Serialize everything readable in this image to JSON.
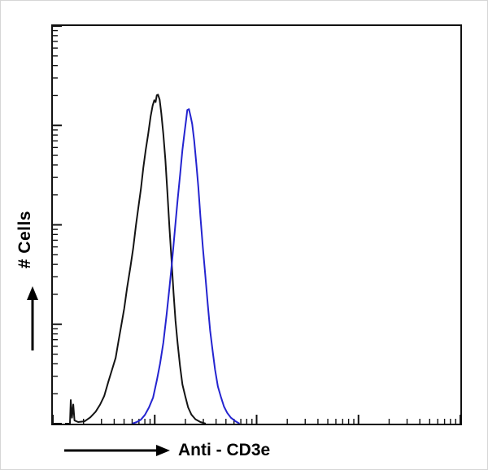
{
  "figure": {
    "kind": "flow-cytometry-histogram",
    "background_color": "#ffffff",
    "axis_color": "#111111"
  },
  "chart_data": {
    "type": "area",
    "title": "",
    "xlabel": "Anti - CD3e",
    "ylabel": "# Cells",
    "grid": false,
    "legend": "none",
    "x_axis": {
      "scale": "log",
      "decades": 4,
      "tick_labels": []
    },
    "y_axis": {
      "scale": "log",
      "decades": 4,
      "tick_labels": []
    },
    "series": [
      {
        "name": "black curve",
        "color": "#141414",
        "peak_x_fraction": 0.256,
        "peak_height_fraction": 0.83,
        "points": [
          [
            0.03,
            0
          ],
          [
            0.042,
            0
          ],
          [
            0.044,
            0.062
          ],
          [
            0.047,
            0.015
          ],
          [
            0.05,
            0.048
          ],
          [
            0.053,
            0.008
          ],
          [
            0.062,
            0.004
          ],
          [
            0.078,
            0.006
          ],
          [
            0.092,
            0.016
          ],
          [
            0.105,
            0.03
          ],
          [
            0.116,
            0.048
          ],
          [
            0.126,
            0.072
          ],
          [
            0.136,
            0.102
          ],
          [
            0.146,
            0.138
          ],
          [
            0.154,
            0.168
          ],
          [
            0.161,
            0.205
          ],
          [
            0.168,
            0.248
          ],
          [
            0.175,
            0.292
          ],
          [
            0.182,
            0.338
          ],
          [
            0.19,
            0.392
          ],
          [
            0.197,
            0.443
          ],
          [
            0.204,
            0.497
          ],
          [
            0.21,
            0.545
          ],
          [
            0.216,
            0.592
          ],
          [
            0.222,
            0.641
          ],
          [
            0.228,
            0.689
          ],
          [
            0.234,
            0.731
          ],
          [
            0.24,
            0.77
          ],
          [
            0.245,
            0.8
          ],
          [
            0.249,
            0.816
          ],
          [
            0.252,
            0.806
          ],
          [
            0.255,
            0.826
          ],
          [
            0.258,
            0.83
          ],
          [
            0.262,
            0.812
          ],
          [
            0.266,
            0.781
          ],
          [
            0.271,
            0.731
          ],
          [
            0.276,
            0.662
          ],
          [
            0.281,
            0.582
          ],
          [
            0.286,
            0.497
          ],
          [
            0.291,
            0.412
          ],
          [
            0.296,
            0.331
          ],
          [
            0.301,
            0.261
          ],
          [
            0.306,
            0.201
          ],
          [
            0.312,
            0.146
          ],
          [
            0.318,
            0.101
          ],
          [
            0.325,
            0.066
          ],
          [
            0.332,
            0.041
          ],
          [
            0.34,
            0.023
          ],
          [
            0.35,
            0.011
          ],
          [
            0.362,
            0.004
          ],
          [
            0.375,
            0
          ]
        ]
      },
      {
        "name": "blue curve",
        "color": "#2424d0",
        "peak_x_fraction": 0.334,
        "peak_height_fraction": 0.79,
        "points": [
          [
            0.195,
            0
          ],
          [
            0.206,
            0.004
          ],
          [
            0.216,
            0.01
          ],
          [
            0.226,
            0.022
          ],
          [
            0.236,
            0.041
          ],
          [
            0.246,
            0.068
          ],
          [
            0.255,
            0.106
          ],
          [
            0.263,
            0.151
          ],
          [
            0.271,
            0.206
          ],
          [
            0.279,
            0.271
          ],
          [
            0.286,
            0.341
          ],
          [
            0.293,
            0.416
          ],
          [
            0.3,
            0.491
          ],
          [
            0.306,
            0.561
          ],
          [
            0.312,
            0.626
          ],
          [
            0.318,
            0.686
          ],
          [
            0.323,
            0.731
          ],
          [
            0.327,
            0.766
          ],
          [
            0.33,
            0.786
          ],
          [
            0.334,
            0.791
          ],
          [
            0.338,
            0.776
          ],
          [
            0.342,
            0.751
          ],
          [
            0.347,
            0.711
          ],
          [
            0.352,
            0.656
          ],
          [
            0.357,
            0.591
          ],
          [
            0.362,
            0.521
          ],
          [
            0.368,
            0.446
          ],
          [
            0.374,
            0.371
          ],
          [
            0.38,
            0.301
          ],
          [
            0.386,
            0.236
          ],
          [
            0.392,
            0.181
          ],
          [
            0.398,
            0.136
          ],
          [
            0.405,
            0.096
          ],
          [
            0.412,
            0.066
          ],
          [
            0.42,
            0.043
          ],
          [
            0.428,
            0.027
          ],
          [
            0.437,
            0.015
          ],
          [
            0.447,
            0.007
          ],
          [
            0.458,
            0
          ]
        ]
      }
    ]
  }
}
